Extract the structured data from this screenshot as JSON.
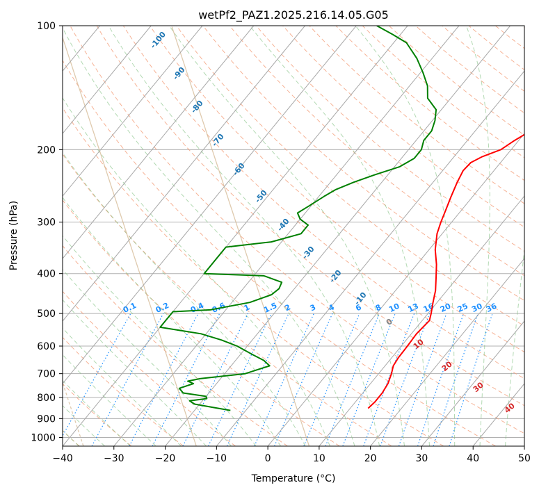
{
  "chart_data": {
    "type": "skew-t",
    "title": "wetPf2_PAZ1.2025.216.14.05.G05",
    "xlabel": "Temperature (°C)",
    "ylabel": "Pressure (hPa)",
    "xlim": [
      -40,
      50
    ],
    "ylim": [
      1050,
      100
    ],
    "y_scale": "log",
    "grid": true,
    "x_ticks": [
      -40,
      -30,
      -20,
      -10,
      0,
      10,
      20,
      30,
      40,
      50
    ],
    "x_tick_labels": [
      "−40",
      "−30",
      "−20",
      "−10",
      "0",
      "10",
      "20",
      "30",
      "40",
      "50"
    ],
    "y_ticks": [
      1000,
      900,
      800,
      700,
      600,
      500,
      400,
      300,
      200,
      100
    ],
    "y_tick_labels": [
      "1000",
      "900",
      "800",
      "700",
      "600",
      "500",
      "400",
      "300",
      "200",
      "100"
    ],
    "temperature_profile": {
      "color": "#ff0000",
      "points": [
        [
          850,
          13.5
        ],
        [
          820,
          13.8
        ],
        [
          780,
          13.8
        ],
        [
          740,
          13.4
        ],
        [
          700,
          12.5
        ],
        [
          670,
          11.6
        ],
        [
          640,
          11.3
        ],
        [
          600,
          11.2
        ],
        [
          560,
          11.0
        ],
        [
          520,
          11.4
        ],
        [
          500,
          10.6
        ],
        [
          470,
          9.2
        ],
        [
          440,
          7.8
        ],
        [
          410,
          5.9
        ],
        [
          380,
          3.8
        ],
        [
          350,
          1.2
        ],
        [
          320,
          -1.0
        ],
        [
          300,
          -2.1
        ],
        [
          280,
          -3.1
        ],
        [
          260,
          -4.2
        ],
        [
          240,
          -5.3
        ],
        [
          225,
          -6.0
        ],
        [
          215,
          -5.8
        ],
        [
          208,
          -4.5
        ],
        [
          200,
          -2.0
        ],
        [
          190,
          -0.8
        ],
        [
          180,
          0.8
        ],
        [
          170,
          1.4
        ],
        [
          160,
          0.6
        ],
        [
          150,
          -0.2
        ],
        [
          140,
          -1.2
        ],
        [
          130,
          -3.2
        ],
        [
          125,
          -4.5
        ],
        [
          120,
          -5.2
        ],
        [
          115,
          -6.1
        ],
        [
          110,
          -8.2
        ],
        [
          105,
          -10.2
        ],
        [
          100,
          -12.5
        ]
      ]
    },
    "dewpoint_profile": {
      "color": "#008000",
      "points": [
        [
          860,
          -13.0
        ],
        [
          845,
          -17.0
        ],
        [
          830,
          -21.0
        ],
        [
          815,
          -22.5
        ],
        [
          805,
          -19.5
        ],
        [
          795,
          -20.0
        ],
        [
          780,
          -25.0
        ],
        [
          760,
          -26.5
        ],
        [
          740,
          -24.5
        ],
        [
          730,
          -26.0
        ],
        [
          720,
          -24.0
        ],
        [
          700,
          -16.0
        ],
        [
          670,
          -12.5
        ],
        [
          650,
          -14.5
        ],
        [
          630,
          -17.5
        ],
        [
          600,
          -22.0
        ],
        [
          580,
          -26.0
        ],
        [
          560,
          -31.0
        ],
        [
          540,
          -40.0
        ],
        [
          495,
          -40.0
        ],
        [
          490,
          -33.0
        ],
        [
          470,
          -26.5
        ],
        [
          450,
          -23.5
        ],
        [
          435,
          -23.0
        ],
        [
          420,
          -23.5
        ],
        [
          405,
          -28.0
        ],
        [
          400,
          -40.0
        ],
        [
          345,
          -40.0
        ],
        [
          335,
          -32.0
        ],
        [
          320,
          -27.5
        ],
        [
          305,
          -27.5
        ],
        [
          295,
          -30.0
        ],
        [
          285,
          -31.5
        ],
        [
          275,
          -30.5
        ],
        [
          260,
          -29.0
        ],
        [
          250,
          -27.8
        ],
        [
          240,
          -25.5
        ],
        [
          230,
          -22.5
        ],
        [
          220,
          -19.0
        ],
        [
          210,
          -17.5
        ],
        [
          200,
          -17.5
        ],
        [
          190,
          -18.5
        ],
        [
          180,
          -18.5
        ],
        [
          170,
          -19.5
        ],
        [
          160,
          -21.0
        ],
        [
          150,
          -24.5
        ],
        [
          140,
          -26.5
        ],
        [
          130,
          -29.5
        ],
        [
          120,
          -33.0
        ],
        [
          110,
          -37.5
        ],
        [
          105,
          -41.5
        ],
        [
          100,
          -46.0
        ]
      ]
    },
    "dry_adiabat_labels": [
      "-100",
      "-90",
      "-80",
      "-70",
      "-60",
      "-50",
      "-40",
      "-30",
      "-20",
      "-10"
    ],
    "dry_adiabat_label_color": "#1f77b4",
    "mixing_ratio_labels": [
      "0.1",
      "0.2",
      "0.4",
      "0.6",
      "1",
      "1.5",
      "2",
      "3",
      "4",
      "6",
      "8",
      "10",
      "13",
      "16",
      "20",
      "25",
      "30",
      "36"
    ],
    "mixing_ratio_color": "#1e90ff",
    "moist_adiabat_labels": [
      "0",
      "10",
      "20",
      "30",
      "40"
    ],
    "moist_adiabat_label_colors": [
      "#808080",
      "#d62728",
      "#d62728",
      "#d62728",
      "#d62728"
    ]
  }
}
